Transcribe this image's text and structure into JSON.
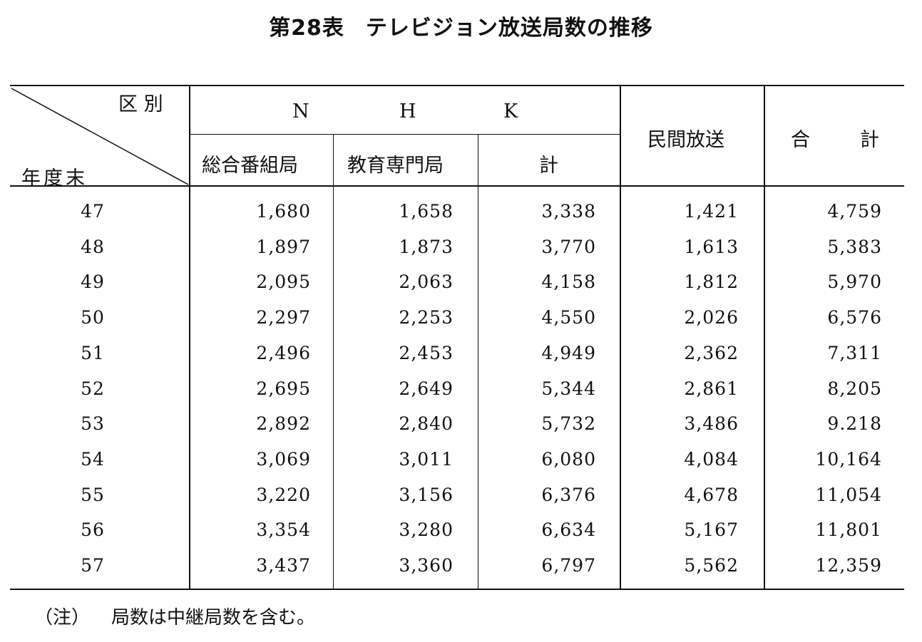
{
  "title": {
    "number": "第28表",
    "text": "テレビジョン放送局数の推移"
  },
  "header": {
    "corner_top": "区 別",
    "corner_bottom": "年度末",
    "nhk_letters": [
      "N",
      "H",
      "K"
    ],
    "nhk_sub": [
      "総合番組局",
      "教育専門局",
      "計"
    ],
    "private": "民間放送",
    "total_first": "合",
    "total_second": "計"
  },
  "rows": [
    {
      "year": "47",
      "general": "1,680",
      "education": "1,658",
      "nhk_total": "3,338",
      "private": "1,421",
      "total": "4,759"
    },
    {
      "year": "48",
      "general": "1,897",
      "education": "1,873",
      "nhk_total": "3,770",
      "private": "1,613",
      "total": "5,383"
    },
    {
      "year": "49",
      "general": "2,095",
      "education": "2,063",
      "nhk_total": "4,158",
      "private": "1,812",
      "total": "5,970"
    },
    {
      "year": "50",
      "general": "2,297",
      "education": "2,253",
      "nhk_total": "4,550",
      "private": "2,026",
      "total": "6,576"
    },
    {
      "year": "51",
      "general": "2,496",
      "education": "2,453",
      "nhk_total": "4,949",
      "private": "2,362",
      "total": "7,311"
    },
    {
      "year": "52",
      "general": "2,695",
      "education": "2,649",
      "nhk_total": "5,344",
      "private": "2,861",
      "total": "8,205"
    },
    {
      "year": "53",
      "general": "2,892",
      "education": "2,840",
      "nhk_total": "5,732",
      "private": "3,486",
      "total": "9.218"
    },
    {
      "year": "54",
      "general": "3,069",
      "education": "3,011",
      "nhk_total": "6,080",
      "private": "4,084",
      "total": "10,164"
    },
    {
      "year": "55",
      "general": "3,220",
      "education": "3,156",
      "nhk_total": "6,376",
      "private": "4,678",
      "total": "11,054"
    },
    {
      "year": "56",
      "general": "3,354",
      "education": "3,280",
      "nhk_total": "6,634",
      "private": "5,167",
      "total": "11,801"
    },
    {
      "year": "57",
      "general": "3,437",
      "education": "3,360",
      "nhk_total": "6,797",
      "private": "5,562",
      "total": "12,359"
    }
  ],
  "note": {
    "label": "（注）",
    "text": "局数は中継局数を含む。"
  }
}
